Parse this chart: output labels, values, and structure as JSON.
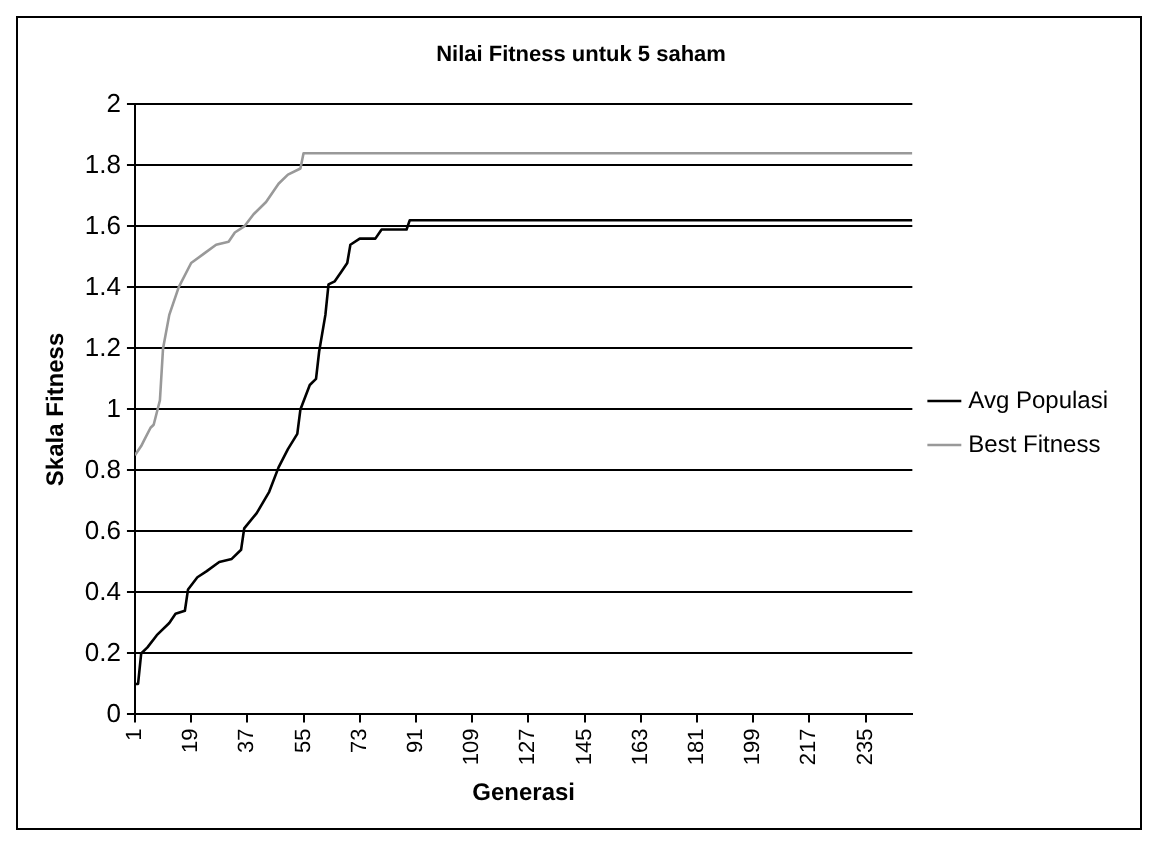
{
  "chart_data": {
    "type": "line",
    "title": "Nilai Fitness untuk 5 saham",
    "xlabel": "Generasi",
    "ylabel": "Skala Fitness",
    "xlim": [
      1,
      250
    ],
    "xticks": [
      1,
      19,
      37,
      55,
      73,
      91,
      109,
      127,
      145,
      163,
      181,
      199,
      217,
      235
    ],
    "ylim": [
      0,
      2
    ],
    "yticks": [
      0,
      0.2,
      0.4,
      0.6,
      0.8,
      1,
      1.2,
      1.4,
      1.6,
      1.8,
      2
    ],
    "grid": "y",
    "legend": "right",
    "marker": "none",
    "line_style": "solid",
    "series": [
      {
        "name": "Avg Populasi",
        "color": "#000000",
        "x": [
          1,
          2,
          3,
          5,
          8,
          12,
          14,
          17,
          18,
          21,
          24,
          28,
          32,
          35,
          36,
          40,
          44,
          47,
          50,
          53,
          54,
          57,
          59,
          60,
          62,
          63,
          65,
          67,
          69,
          70,
          73,
          78,
          80,
          88,
          89,
          250
        ],
        "values": [
          0.1,
          0.1,
          0.2,
          0.22,
          0.26,
          0.3,
          0.33,
          0.34,
          0.41,
          0.45,
          0.47,
          0.5,
          0.51,
          0.54,
          0.61,
          0.66,
          0.73,
          0.81,
          0.87,
          0.92,
          1.0,
          1.08,
          1.1,
          1.19,
          1.31,
          1.41,
          1.42,
          1.45,
          1.48,
          1.54,
          1.56,
          1.56,
          1.59,
          1.59,
          1.62,
          1.62
        ]
      },
      {
        "name": "Best Fitness",
        "color": "#999999",
        "x": [
          1,
          3,
          4,
          6,
          7,
          9,
          10,
          12,
          15,
          19,
          23,
          27,
          31,
          33,
          36,
          39,
          43,
          47,
          50,
          54,
          55,
          250
        ],
        "values": [
          0.85,
          0.88,
          0.9,
          0.94,
          0.95,
          1.03,
          1.2,
          1.31,
          1.4,
          1.48,
          1.51,
          1.54,
          1.55,
          1.58,
          1.6,
          1.64,
          1.68,
          1.74,
          1.77,
          1.79,
          1.84,
          1.84
        ]
      }
    ]
  }
}
